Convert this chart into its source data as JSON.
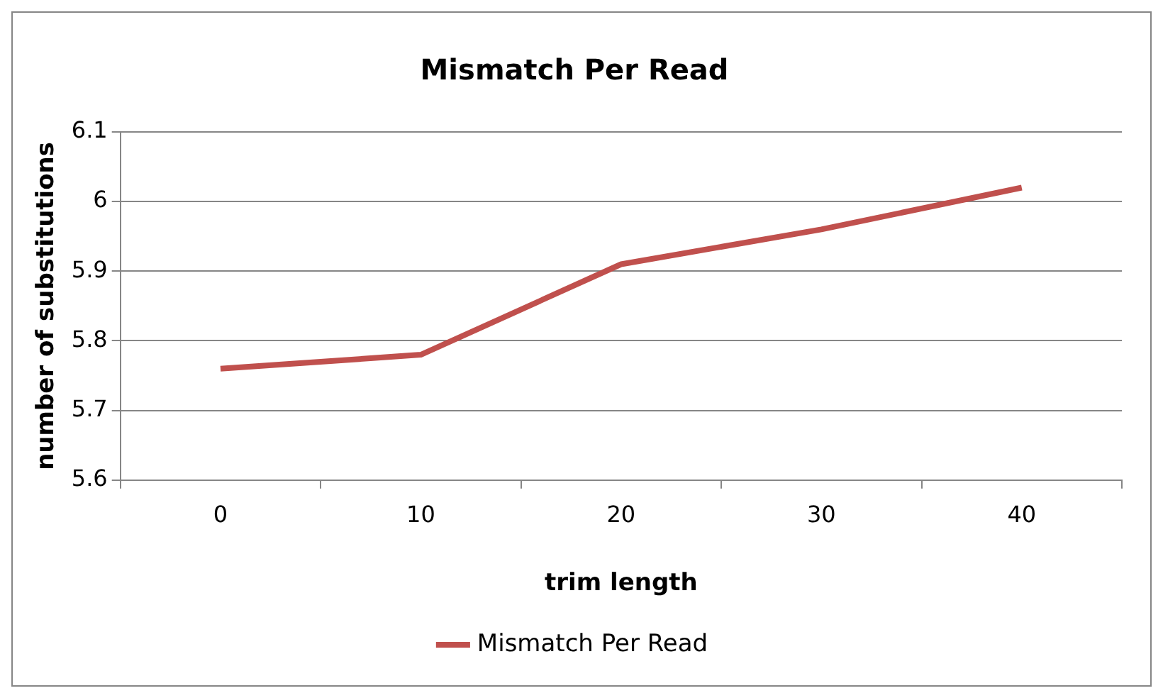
{
  "chart_data": {
    "type": "line",
    "title": "Mismatch Per Read",
    "xlabel": "trim length",
    "ylabel": "number of substitutions",
    "categories": [
      "0",
      "10",
      "20",
      "30",
      "40"
    ],
    "series": [
      {
        "name": "Mismatch Per Read",
        "color": "#c0504d",
        "values": [
          5.76,
          5.78,
          5.91,
          5.96,
          6.02
        ]
      }
    ],
    "ylim": [
      5.6,
      6.1
    ],
    "yticks": [
      5.6,
      5.7,
      5.8,
      5.9,
      6,
      6.1
    ],
    "grid": "y",
    "legend": "bottom",
    "marker": "none"
  }
}
